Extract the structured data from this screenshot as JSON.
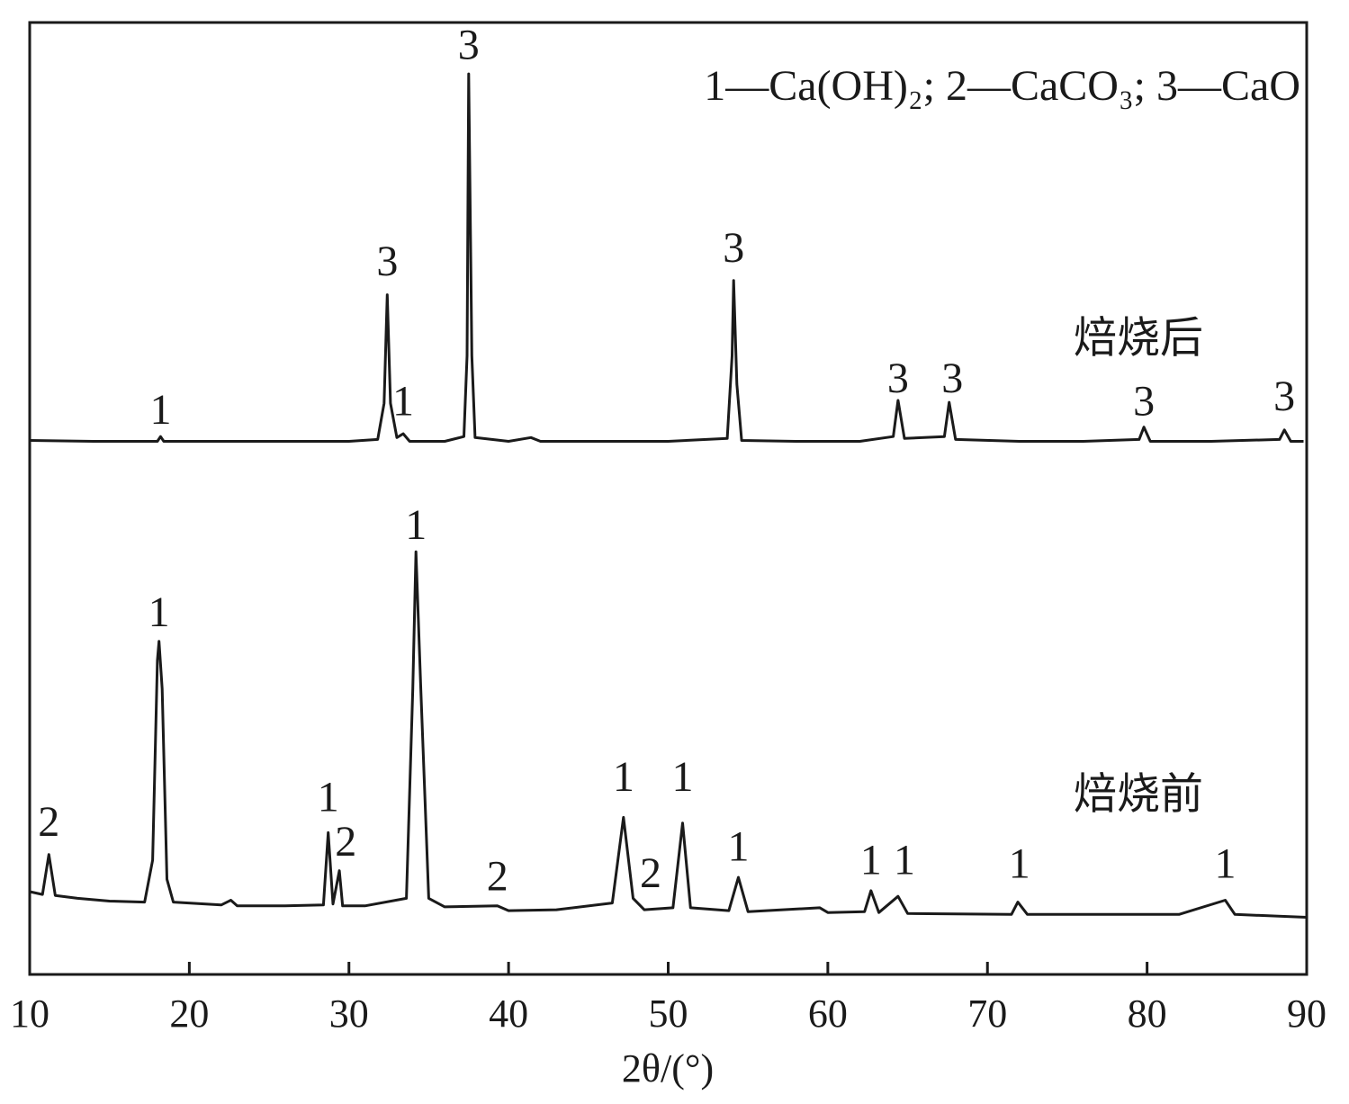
{
  "chart_data": {
    "type": "line",
    "legend_text": "1—Ca(OH)₂; 2—CaCO₃; 3—CaO",
    "xlabel": "2θ/(°)",
    "xlim": [
      10,
      90
    ],
    "xticks": [
      10,
      20,
      30,
      40,
      50,
      60,
      70,
      80,
      90
    ],
    "ylim": [
      0,
      100
    ],
    "series": [
      {
        "name": "焙烧后",
        "color": "#1a1a1a",
        "x": [
          10.0,
          14,
          18.0,
          18.2,
          18.4,
          22,
          26,
          30,
          31.8,
          32.2,
          32.4,
          32.6,
          33.0,
          33.4,
          33.8,
          36,
          37.2,
          37.4,
          37.5,
          37.7,
          37.9,
          40,
          41.4,
          42,
          46,
          50,
          53.7,
          54.0,
          54.1,
          54.3,
          54.6,
          58,
          62,
          64.1,
          64.4,
          64.8,
          67.3,
          67.6,
          68.0,
          72,
          76,
          79.5,
          79.8,
          80.2,
          84,
          88.3,
          88.6,
          89,
          89.8
        ],
        "values": [
          56.1,
          56.0,
          56.0,
          56.5,
          56.0,
          56.0,
          56.0,
          56.0,
          56.2,
          60,
          71.4,
          60,
          56.4,
          56.8,
          56.0,
          56.0,
          56.5,
          65,
          94.6,
          65,
          56.4,
          56.0,
          56.4,
          56.0,
          56.0,
          56.0,
          56.3,
          65,
          72.9,
          62,
          56.1,
          56.0,
          56.0,
          56.5,
          60.3,
          56.3,
          56.5,
          60.1,
          56.2,
          56.0,
          56.0,
          56.2,
          57.5,
          56.0,
          56.0,
          56.2,
          57.2,
          56.0,
          56.0
        ]
      },
      {
        "name": "焙烧前",
        "color": "#1a1a1a",
        "x": [
          10.0,
          10.8,
          11.2,
          11.6,
          13,
          15,
          17.2,
          17.7,
          18.0,
          18.1,
          18.3,
          18.6,
          19,
          22,
          22.6,
          23,
          26,
          28.4,
          28.7,
          29.0,
          29.4,
          29.6,
          31,
          33.6,
          34.0,
          34.2,
          34.5,
          35,
          36,
          39.3,
          40,
          43,
          46.5,
          47.2,
          47.8,
          48.5,
          50.3,
          50.9,
          51.4,
          53.8,
          54.4,
          55,
          59.5,
          60,
          62.3,
          62.7,
          63.2,
          64.4,
          65,
          71.5,
          71.9,
          72.5,
          82,
          84.9,
          85.5,
          90
        ],
        "values": [
          8.7,
          8.4,
          12.6,
          8.3,
          8.0,
          7.7,
          7.6,
          12,
          33,
          35.0,
          30,
          10,
          7.6,
          7.3,
          7.8,
          7.2,
          7.2,
          7.3,
          14.9,
          7.4,
          10.9,
          7.2,
          7.2,
          8,
          30,
          44.4,
          30,
          8,
          7.1,
          7.2,
          6.7,
          6.8,
          7.5,
          16.5,
          8,
          6.8,
          7,
          15.9,
          7,
          6.7,
          10.2,
          6.6,
          7.0,
          6.5,
          6.6,
          8.8,
          6.5,
          8.2,
          6.4,
          6.3,
          7.6,
          6.3,
          6.3,
          7.8,
          6.3,
          6.0
        ]
      }
    ],
    "annotations": [
      {
        "text": "3",
        "x": 37.5,
        "y": 97.2
      },
      {
        "text": "3",
        "x": 32.4,
        "y": 74.5
      },
      {
        "text": "1",
        "x": 18.2,
        "y": 58.9
      },
      {
        "text": "1",
        "x": 33.4,
        "y": 59.8
      },
      {
        "text": "3",
        "x": 54.1,
        "y": 75.9
      },
      {
        "text": "3",
        "x": 64.4,
        "y": 62.2
      },
      {
        "text": "3",
        "x": 67.8,
        "y": 62.2
      },
      {
        "text": "3",
        "x": 79.8,
        "y": 59.8
      },
      {
        "text": "3",
        "x": 88.6,
        "y": 60.3
      },
      {
        "text": "2",
        "x": 11.2,
        "y": 15.6
      },
      {
        "text": "1",
        "x": 18.1,
        "y": 37.6
      },
      {
        "text": "1",
        "x": 28.7,
        "y": 18.2
      },
      {
        "text": "2",
        "x": 29.8,
        "y": 13.5
      },
      {
        "text": "1",
        "x": 34.2,
        "y": 46.8
      },
      {
        "text": "2",
        "x": 39.3,
        "y": 9.9
      },
      {
        "text": "1",
        "x": 47.2,
        "y": 20.3
      },
      {
        "text": "2",
        "x": 48.9,
        "y": 10.2
      },
      {
        "text": "1",
        "x": 50.9,
        "y": 20.3
      },
      {
        "text": "1",
        "x": 54.4,
        "y": 13.0
      },
      {
        "text": "1",
        "x": 62.7,
        "y": 11.6
      },
      {
        "text": "1",
        "x": 64.8,
        "y": 11.6
      },
      {
        "text": "1",
        "x": 72.0,
        "y": 11.2
      },
      {
        "text": "1",
        "x": 84.9,
        "y": 11.2
      }
    ]
  }
}
